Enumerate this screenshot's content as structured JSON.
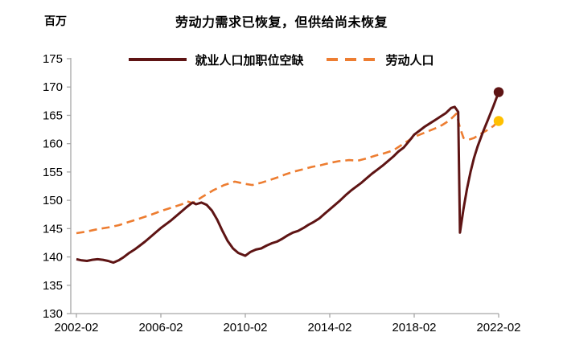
{
  "header": {
    "unit_label": "百万",
    "title": "劳动力需求已恢复，但供给尚未恢复"
  },
  "legend": [
    {
      "label": "就业人口加职位空缺",
      "color": "#5E1414",
      "style": "solid"
    },
    {
      "label": "劳动人口",
      "color": "#ED7D31",
      "style": "dashed"
    }
  ],
  "chart_data": {
    "type": "line",
    "title": "劳动力需求已恢复，但供给尚未恢复",
    "ylabel": "百万",
    "ylim": [
      130,
      175
    ],
    "y_ticks": [
      130,
      135,
      140,
      145,
      150,
      155,
      160,
      165,
      170,
      175
    ],
    "x_tick_labels": [
      "2002-02",
      "2006-02",
      "2010-02",
      "2014-02",
      "2018-02",
      "2022-02"
    ],
    "axis_color": "#A6A6A6",
    "grid": false,
    "legend_position": "top",
    "series": [
      {
        "name": "就业人口加职位空缺",
        "style": "solid",
        "color": "#5E1414",
        "end_marker_color": "#5E1414",
        "end_value": 169.1,
        "points": [
          [
            "2002-02",
            139.6
          ],
          [
            "2002-05",
            139.4
          ],
          [
            "2002-08",
            139.3
          ],
          [
            "2002-11",
            139.5
          ],
          [
            "2003-02",
            139.6
          ],
          [
            "2003-05",
            139.5
          ],
          [
            "2003-08",
            139.3
          ],
          [
            "2003-11",
            139.0
          ],
          [
            "2004-02",
            139.4
          ],
          [
            "2004-05",
            140.0
          ],
          [
            "2004-08",
            140.7
          ],
          [
            "2004-11",
            141.3
          ],
          [
            "2005-02",
            142.0
          ],
          [
            "2005-05",
            142.7
          ],
          [
            "2005-08",
            143.5
          ],
          [
            "2005-11",
            144.3
          ],
          [
            "2006-02",
            145.1
          ],
          [
            "2006-05",
            145.8
          ],
          [
            "2006-08",
            146.5
          ],
          [
            "2006-11",
            147.3
          ],
          [
            "2007-02",
            148.1
          ],
          [
            "2007-05",
            148.9
          ],
          [
            "2007-08",
            149.6
          ],
          [
            "2007-10",
            149.3
          ],
          [
            "2008-01",
            149.6
          ],
          [
            "2008-04",
            149.2
          ],
          [
            "2008-07",
            148.2
          ],
          [
            "2008-10",
            146.6
          ],
          [
            "2009-01",
            144.6
          ],
          [
            "2009-04",
            142.8
          ],
          [
            "2009-07",
            141.5
          ],
          [
            "2009-10",
            140.7
          ],
          [
            "2010-02",
            140.2
          ],
          [
            "2010-05",
            140.9
          ],
          [
            "2010-08",
            141.3
          ],
          [
            "2010-11",
            141.5
          ],
          [
            "2011-02",
            142.0
          ],
          [
            "2011-05",
            142.4
          ],
          [
            "2011-08",
            142.7
          ],
          [
            "2011-11",
            143.2
          ],
          [
            "2012-02",
            143.8
          ],
          [
            "2012-05",
            144.3
          ],
          [
            "2012-08",
            144.6
          ],
          [
            "2012-11",
            145.1
          ],
          [
            "2013-02",
            145.7
          ],
          [
            "2013-05",
            146.2
          ],
          [
            "2013-08",
            146.8
          ],
          [
            "2013-11",
            147.6
          ],
          [
            "2014-02",
            148.4
          ],
          [
            "2014-05",
            149.2
          ],
          [
            "2014-08",
            150.0
          ],
          [
            "2014-11",
            150.9
          ],
          [
            "2015-02",
            151.7
          ],
          [
            "2015-05",
            152.4
          ],
          [
            "2015-08",
            153.1
          ],
          [
            "2015-11",
            153.9
          ],
          [
            "2016-02",
            154.7
          ],
          [
            "2016-05",
            155.4
          ],
          [
            "2016-08",
            156.1
          ],
          [
            "2016-11",
            156.9
          ],
          [
            "2017-02",
            157.7
          ],
          [
            "2017-05",
            158.6
          ],
          [
            "2017-08",
            159.3
          ],
          [
            "2017-11",
            160.4
          ],
          [
            "2018-02",
            161.6
          ],
          [
            "2018-05",
            162.3
          ],
          [
            "2018-08",
            163.0
          ],
          [
            "2018-11",
            163.6
          ],
          [
            "2019-02",
            164.2
          ],
          [
            "2019-05",
            164.8
          ],
          [
            "2019-08",
            165.4
          ],
          [
            "2019-11",
            166.3
          ],
          [
            "2020-01",
            166.5
          ],
          [
            "2020-03",
            165.6
          ],
          [
            "2020-04",
            144.3
          ],
          [
            "2020-06",
            148.5
          ],
          [
            "2020-08",
            152.0
          ],
          [
            "2020-10",
            155.0
          ],
          [
            "2020-12",
            157.5
          ],
          [
            "2021-02",
            159.5
          ],
          [
            "2021-05",
            162.0
          ],
          [
            "2021-08",
            164.3
          ],
          [
            "2021-11",
            166.6
          ],
          [
            "2022-02",
            169.1
          ]
        ]
      },
      {
        "name": "劳动人口",
        "style": "dashed",
        "color": "#ED7D31",
        "end_marker_color": "#FFC000",
        "end_value": 164.0,
        "points": [
          [
            "2002-02",
            144.2
          ],
          [
            "2002-08",
            144.5
          ],
          [
            "2003-02",
            144.9
          ],
          [
            "2003-08",
            145.2
          ],
          [
            "2004-02",
            145.6
          ],
          [
            "2004-08",
            146.2
          ],
          [
            "2005-02",
            146.8
          ],
          [
            "2005-08",
            147.4
          ],
          [
            "2006-02",
            148.1
          ],
          [
            "2006-08",
            148.7
          ],
          [
            "2007-02",
            149.3
          ],
          [
            "2007-05",
            149.8
          ],
          [
            "2007-08",
            149.5
          ],
          [
            "2007-11",
            150.1
          ],
          [
            "2008-02",
            150.7
          ],
          [
            "2008-08",
            151.8
          ],
          [
            "2009-02",
            152.7
          ],
          [
            "2009-08",
            153.3
          ],
          [
            "2010-02",
            152.9
          ],
          [
            "2010-06",
            152.7
          ],
          [
            "2010-11",
            153.1
          ],
          [
            "2011-03",
            153.5
          ],
          [
            "2011-08",
            154.0
          ],
          [
            "2012-01",
            154.6
          ],
          [
            "2012-06",
            155.1
          ],
          [
            "2012-11",
            155.5
          ],
          [
            "2013-04",
            155.9
          ],
          [
            "2013-09",
            156.2
          ],
          [
            "2014-02",
            156.6
          ],
          [
            "2014-07",
            156.9
          ],
          [
            "2015-01",
            157.1
          ],
          [
            "2015-06",
            157.0
          ],
          [
            "2015-11",
            157.4
          ],
          [
            "2016-04",
            157.9
          ],
          [
            "2016-09",
            158.3
          ],
          [
            "2017-02",
            158.8
          ],
          [
            "2017-07",
            159.8
          ],
          [
            "2017-11",
            160.6
          ],
          [
            "2018-02",
            161.2
          ],
          [
            "2018-06",
            161.7
          ],
          [
            "2018-10",
            162.2
          ],
          [
            "2019-02",
            162.7
          ],
          [
            "2019-06",
            163.3
          ],
          [
            "2019-10",
            164.1
          ],
          [
            "2020-02",
            165.3
          ],
          [
            "2020-04",
            162.8
          ],
          [
            "2020-06",
            161.0
          ],
          [
            "2020-09",
            160.7
          ],
          [
            "2020-12",
            161.0
          ],
          [
            "2021-03",
            161.6
          ],
          [
            "2021-07",
            162.3
          ],
          [
            "2021-11",
            163.1
          ],
          [
            "2022-02",
            164.0
          ]
        ]
      }
    ]
  }
}
